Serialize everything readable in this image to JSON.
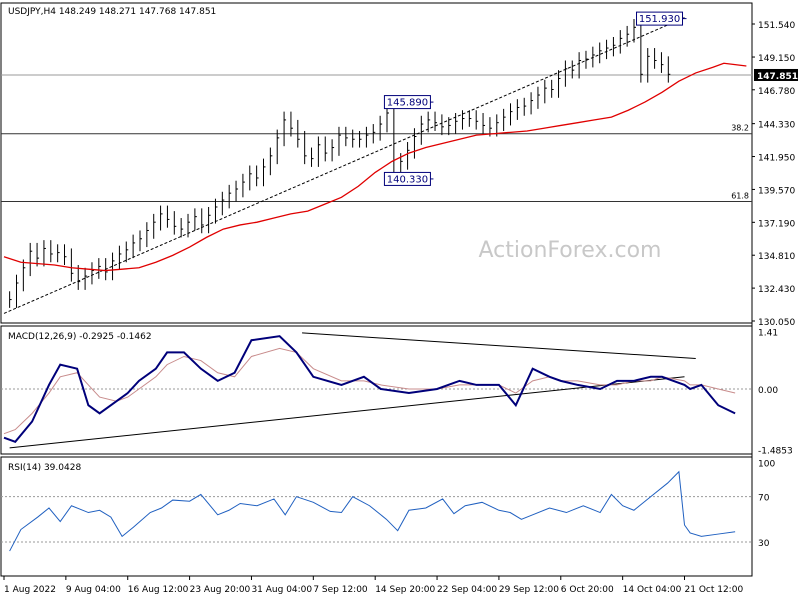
{
  "chart_data": [
    {
      "type": "line",
      "pane": "price",
      "title": "USDJPY,H4",
      "ohlc": [
        "148.249",
        "148.271",
        "147.768",
        "147.851"
      ],
      "last_price_label": "147.851",
      "y_ticks": [
        "151.540",
        "149.150",
        "146.780",
        "144.330",
        "141.950",
        "139.570",
        "137.190",
        "134.810",
        "132.430",
        "130.050"
      ],
      "y_tick_values": [
        151.54,
        149.15,
        146.78,
        144.33,
        141.95,
        139.57,
        137.19,
        134.81,
        132.43,
        130.05
      ],
      "ylim": [
        129.55,
        153.0
      ],
      "x_tick_labels": [
        "1 Aug 2022",
        "9 Aug 04:00",
        "16 Aug 12:00",
        "23 Aug 20:00",
        "31 Aug 04:00",
        "7 Sep 12:00",
        "14 Sep 20:00",
        "22 Sep 04:00",
        "29 Sep 12:00",
        "6 Oct 20:00",
        "14 Oct 04:00",
        "21 Oct 12:00"
      ],
      "x_range": [
        0,
        133
      ],
      "x_tick_positions": [
        0,
        11,
        22,
        33,
        44,
        55,
        66,
        77,
        88,
        99,
        110,
        121
      ],
      "watermark": "ActionForex.com",
      "series": [
        {
          "kind": "price_bars",
          "color": "#000000",
          "values": [
            131.6,
            132.8,
            133.9,
            135.1,
            134.6,
            135.3,
            134.9,
            135.0,
            134.7,
            133.5,
            132.9,
            133.3,
            133.7,
            134.0,
            133.6,
            134.4,
            134.9,
            135.2,
            135.7,
            136.0,
            136.6,
            137.2,
            137.8,
            137.4,
            136.9,
            136.7,
            137.2,
            137.6,
            137.0,
            137.7,
            138.3,
            138.8,
            139.3,
            139.6,
            140.1,
            140.7,
            140.4,
            141.2,
            142.0,
            143.3,
            144.6,
            144.0,
            143.2,
            142.0,
            141.8,
            142.8,
            142.2,
            142.6,
            143.5,
            143.3,
            143.2,
            143.2,
            143.5,
            143.7,
            144.3,
            145.1,
            140.6,
            141.6,
            142.4,
            143.4,
            144.3,
            144.6,
            144.4,
            144.1,
            144.2,
            144.5,
            144.7,
            144.7,
            144.5,
            144.2,
            144.0,
            144.4,
            144.8,
            145.2,
            145.5,
            145.6,
            146.0,
            146.4,
            146.9,
            146.8,
            147.6,
            148.3,
            148.2,
            148.9,
            149.0,
            149.3,
            149.6,
            149.8,
            150.0,
            150.5,
            150.8,
            151.3,
            147.9,
            149.2,
            148.9,
            148.6,
            147.9
          ],
          "x_start": 1,
          "x_step": 1.22
        },
        {
          "kind": "moving_average",
          "color": "#e00000",
          "values": [
            134.7,
            134.3,
            134.2,
            134.1,
            133.9,
            133.8,
            133.7,
            133.8,
            133.9,
            134.3,
            134.8,
            135.4,
            136.1,
            136.7,
            137.0,
            137.2,
            137.5,
            137.8,
            138.0,
            138.5,
            139.0,
            139.8,
            140.8,
            141.6,
            142.2,
            142.6,
            142.9,
            143.2,
            143.5,
            143.6,
            143.7,
            143.8,
            144.0,
            144.2,
            144.4,
            144.6,
            144.8,
            145.3,
            145.9,
            146.6,
            147.4,
            148.0,
            148.4,
            148.7,
            148.6,
            148.5
          ],
          "x": [
            0,
            3,
            6,
            9,
            12,
            15,
            18,
            21,
            24,
            27,
            30,
            33,
            36,
            39,
            42,
            45,
            48,
            51,
            54,
            57,
            60,
            63,
            66,
            69,
            72,
            75,
            78,
            81,
            84,
            87,
            90,
            93,
            96,
            99,
            102,
            105,
            108,
            111,
            114,
            117,
            120,
            123,
            126,
            128,
            130,
            132
          ]
        }
      ],
      "horizontal_lines": [
        {
          "label": "38.2",
          "value": 143.6
        },
        {
          "label": "61.8",
          "value": 138.7
        }
      ],
      "current_price_line": 147.851,
      "trendline": {
        "from": [
          0,
          130.6
        ],
        "to": [
          121,
          152.0
        ]
      },
      "annotations": [
        {
          "text": "151.930",
          "x": 121,
          "value": 151.93
        },
        {
          "text": "145.890",
          "x": 76,
          "value": 145.89
        },
        {
          "text": "140.330",
          "x": 76,
          "value": 140.33
        }
      ]
    },
    {
      "type": "line",
      "pane": "macd",
      "title": "MACD(12,26,9)",
      "values_label": [
        "-0.2925",
        "-0.1462"
      ],
      "y_ticks": [
        "1.41",
        "0.00",
        "-1.4853"
      ],
      "y_tick_values": [
        1.41,
        0.0,
        -1.4853
      ],
      "ylim": [
        -1.6,
        1.55
      ],
      "series": [
        {
          "kind": "macd",
          "color": "#00007a",
          "values": [
            -1.2,
            -1.3,
            -0.8,
            0.1,
            0.6,
            0.5,
            -0.4,
            -0.6,
            -0.3,
            -0.1,
            0.2,
            0.5,
            0.9,
            0.9,
            0.5,
            0.2,
            0.4,
            1.2,
            1.3,
            0.9,
            0.3,
            0.1,
            0.3,
            0.0,
            -0.1,
            0.0,
            0.2,
            0.1,
            0.1,
            -0.4,
            0.5,
            0.3,
            0.2,
            0.1,
            0.0,
            0.2,
            0.2,
            0.3,
            0.3,
            0.1,
            0.0,
            0.1,
            -0.4,
            -0.6
          ],
          "x": [
            0,
            2,
            5,
            8,
            10,
            13,
            15,
            17,
            20,
            22,
            24,
            27,
            29,
            32,
            35,
            38,
            41,
            44,
            49,
            52,
            55,
            60,
            64,
            67,
            72,
            77,
            81,
            84,
            88,
            91,
            94,
            97,
            99,
            102,
            106,
            109,
            112,
            115,
            117,
            121,
            122,
            124,
            127,
            130
          ]
        },
        {
          "kind": "signal",
          "color": "#c88c8c",
          "values": [
            -1.1,
            -1.0,
            -0.6,
            -0.1,
            0.3,
            0.4,
            0.1,
            -0.2,
            -0.3,
            -0.2,
            0.0,
            0.3,
            0.6,
            0.8,
            0.7,
            0.4,
            0.3,
            0.8,
            1.0,
            0.9,
            0.5,
            0.2,
            0.2,
            0.1,
            0.0,
            0.0,
            0.1,
            0.1,
            0.1,
            -0.1,
            0.2,
            0.3,
            0.2,
            0.2,
            0.1,
            0.1,
            0.2,
            0.2,
            0.3,
            0.2,
            0.1,
            0.1,
            0.0,
            -0.1
          ],
          "x": [
            0,
            2,
            5,
            8,
            10,
            13,
            15,
            17,
            20,
            22,
            24,
            27,
            29,
            32,
            35,
            38,
            41,
            44,
            49,
            52,
            55,
            60,
            64,
            67,
            72,
            77,
            81,
            84,
            88,
            91,
            94,
            97,
            99,
            102,
            106,
            109,
            112,
            115,
            117,
            121,
            122,
            124,
            127,
            130
          ]
        }
      ],
      "trendlines": [
        {
          "from": [
            1,
            -1.45
          ],
          "to": [
            121,
            0.3
          ]
        },
        {
          "from": [
            53,
            1.38
          ],
          "to": [
            123,
            0.75
          ]
        }
      ]
    },
    {
      "type": "line",
      "pane": "rsi",
      "title": "RSI(14)",
      "value_label": "39.0428",
      "y_ticks": [
        "100",
        "70",
        "30"
      ],
      "y_tick_values": [
        100,
        70,
        30
      ],
      "ylim": [
        0,
        105
      ],
      "series": [
        {
          "kind": "rsi",
          "color": "#2060c0",
          "values": [
            22,
            41,
            52,
            60,
            48,
            62,
            56,
            58,
            52,
            35,
            43,
            56,
            60,
            67,
            66,
            72,
            54,
            58,
            64,
            62,
            68,
            54,
            70,
            65,
            57,
            56,
            70,
            62,
            50,
            40,
            58,
            60,
            68,
            55,
            62,
            65,
            58,
            56,
            50,
            54,
            60,
            56,
            62,
            56,
            72,
            62,
            58,
            70,
            82,
            92,
            45,
            38,
            35,
            37,
            39
          ],
          "x": [
            1,
            3,
            6,
            8,
            10,
            12,
            15,
            17,
            19,
            21,
            23,
            26,
            28,
            30,
            33,
            35,
            38,
            40,
            42,
            45,
            48,
            50,
            52,
            55,
            58,
            60,
            62,
            65,
            68,
            70,
            72,
            75,
            78,
            80,
            82,
            85,
            88,
            90,
            92,
            94,
            97,
            100,
            103,
            106,
            108,
            110,
            112,
            115,
            118,
            120,
            121,
            122,
            124,
            127,
            130
          ]
        }
      ],
      "horizontal_lines": [
        {
          "label": "70",
          "value": 70
        },
        {
          "label": "30",
          "value": 30
        }
      ]
    }
  ]
}
